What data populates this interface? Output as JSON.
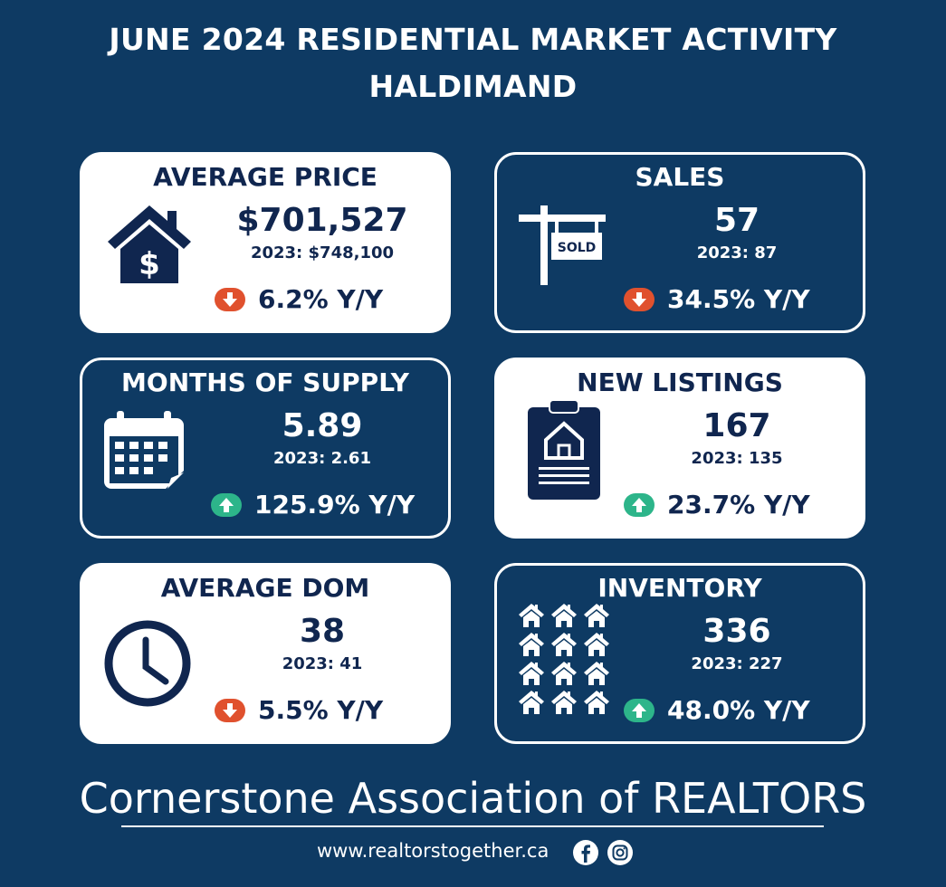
{
  "header": {
    "line1": "JUNE 2024 RESIDENTIAL MARKET ACTIVITY",
    "line2": "HALDIMAND"
  },
  "cards": {
    "average_price": {
      "title": "AVERAGE PRICE",
      "value": "$701,527",
      "previous": "2023: $748,100",
      "change": "6.2% Y/Y",
      "direction": "down",
      "icon": "house-dollar-icon"
    },
    "sales": {
      "title": "SALES",
      "value": "57",
      "previous": "2023: 87",
      "change": "34.5% Y/Y",
      "direction": "down",
      "icon": "sold-sign-icon",
      "sign_text": "SOLD"
    },
    "months_of_supply": {
      "title": "MONTHS OF SUPPLY",
      "value": "5.89",
      "previous": "2023: 2.61",
      "change": "125.9% Y/Y",
      "direction": "up",
      "icon": "calendar-icon"
    },
    "new_listings": {
      "title": "NEW LISTINGS",
      "value": "167",
      "previous": "2023: 135",
      "change": "23.7% Y/Y",
      "direction": "up",
      "icon": "clipboard-house-icon"
    },
    "average_dom": {
      "title": "AVERAGE DOM",
      "value": "38",
      "previous": "2023: 41",
      "change": "5.5% Y/Y",
      "direction": "down",
      "icon": "clock-icon"
    },
    "inventory": {
      "title": "INVENTORY",
      "value": "336",
      "previous": "2023: 227",
      "change": "48.0% Y/Y",
      "direction": "up",
      "icon": "houses-grid-icon"
    }
  },
  "footer": {
    "organization": "Cornerstone Association of REALTORS",
    "url": "www.realtorstogether.ca"
  },
  "colors": {
    "background": "#0e3a63",
    "dark_text": "#10264f",
    "down": "#e0512e",
    "up": "#2db58a"
  }
}
